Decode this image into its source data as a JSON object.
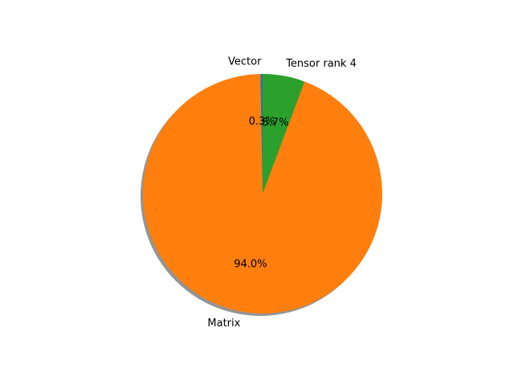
{
  "chart_data": {
    "type": "pie",
    "title": "",
    "labels": [
      "Vector",
      "Matrix",
      "Tensor rank 4"
    ],
    "values": [
      0.3,
      94.0,
      5.7
    ],
    "autopct_labels": [
      "0.3%",
      "94.0%",
      "5.7%"
    ],
    "colors": [
      "#1f77b4",
      "#ff7f0e",
      "#2ca02c"
    ],
    "start_angle_deg": 90,
    "direction": "counterclockwise",
    "shadow": true,
    "legend": "none"
  }
}
